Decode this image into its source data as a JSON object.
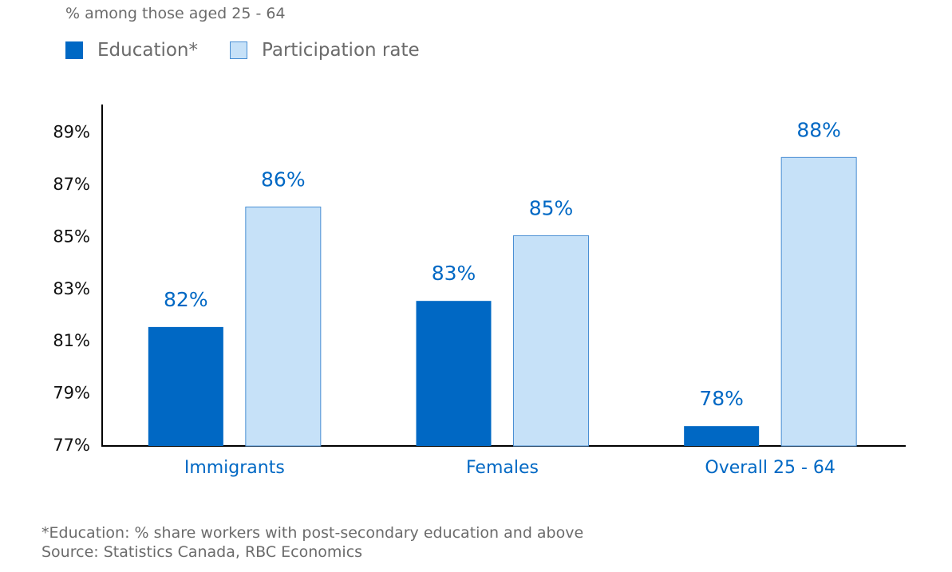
{
  "subtitle": "% among those aged 25 - 64",
  "footnote": "*Education: % share workers with post-secondary education and above",
  "source": "Source: Statistics Canada, RBC Economics",
  "colors": {
    "education": "#0068c4",
    "participation": "#c6e1f8",
    "participation_border": "#4a8fd4",
    "label": "#0068c4"
  },
  "chart_data": {
    "type": "bar",
    "title": "",
    "xlabel": "",
    "ylabel": "% among those aged 25 - 64",
    "categories": [
      "Immigrants",
      "Females",
      "Overall 25 - 64"
    ],
    "series": [
      {
        "name": "Education*",
        "values": [
          81.5,
          82.5,
          77.7
        ],
        "labels": [
          "82%",
          "83%",
          "78%"
        ]
      },
      {
        "name": "Participation rate",
        "values": [
          86.1,
          85.0,
          88.0
        ],
        "labels": [
          "86%",
          "85%",
          "88%"
        ]
      }
    ],
    "yticks": [
      77,
      79,
      81,
      83,
      85,
      87,
      89
    ],
    "ytick_labels": [
      "77%",
      "79%",
      "81%",
      "83%",
      "85%",
      "87%",
      "89%"
    ],
    "ylim": [
      77,
      90
    ],
    "grid": false,
    "legend_position": "top-left"
  }
}
